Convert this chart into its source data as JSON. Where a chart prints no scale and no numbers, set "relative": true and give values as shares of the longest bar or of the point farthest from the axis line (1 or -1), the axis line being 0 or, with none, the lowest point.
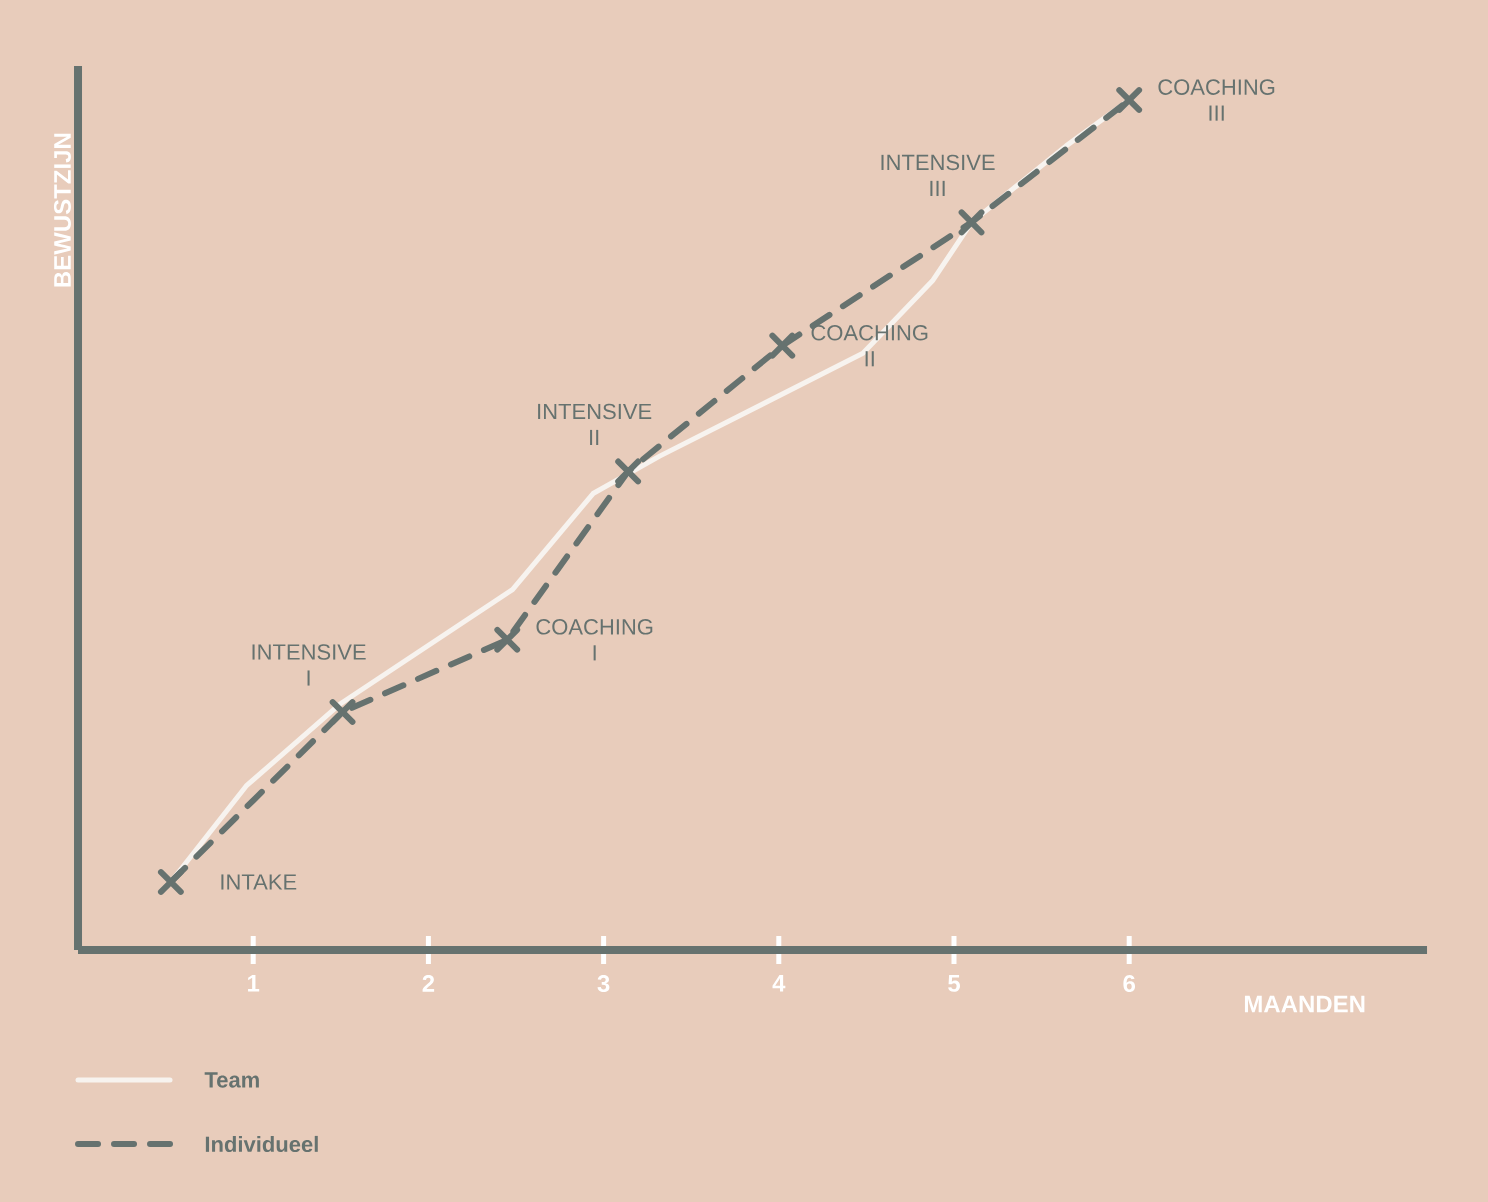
{
  "chart_data": {
    "type": "line",
    "relative": true,
    "xlabel": "MAANDEN",
    "ylabel": "BEWUSTZIJN",
    "xlim": [
      0,
      7.7
    ],
    "xticks": [
      1,
      2,
      3,
      4,
      5,
      6
    ],
    "legend": "bottom left",
    "series": [
      {
        "name": "Team",
        "color": "#f7f3ef",
        "line_style": "solid",
        "marker": "none",
        "x": [
          0.53,
          0.96,
          1.5,
          2.48,
          2.94,
          3.32,
          4.48,
          4.88,
          5.1,
          5.64,
          6.0
        ],
        "values": [
          0.08,
          0.193,
          0.29,
          0.424,
          0.537,
          0.581,
          0.702,
          0.788,
          0.856,
          0.946,
          1.0
        ]
      },
      {
        "name": "Individueel",
        "color": "#66726f",
        "line_style": "dashed",
        "marker": "cross",
        "x": [
          0.53,
          1.51,
          2.45,
          3.14,
          4.02,
          5.1,
          6.0
        ],
        "values": [
          0.08,
          0.28,
          0.365,
          0.563,
          0.711,
          0.856,
          1.0
        ]
      }
    ],
    "annotations": [
      {
        "text": "INTAKE",
        "x": 0.53,
        "y": 0.08
      },
      {
        "text": "INTENSIVE I",
        "x": 1.51,
        "y": 0.28
      },
      {
        "text": "COACHING I",
        "x": 2.45,
        "y": 0.365
      },
      {
        "text": "INTENSIVE II",
        "x": 3.14,
        "y": 0.563
      },
      {
        "text": "COACHING II",
        "x": 4.02,
        "y": 0.711
      },
      {
        "text": "INTENSIVE III",
        "x": 5.1,
        "y": 0.856
      },
      {
        "text": "COACHING III",
        "x": 6.0,
        "y": 1.0
      }
    ]
  }
}
